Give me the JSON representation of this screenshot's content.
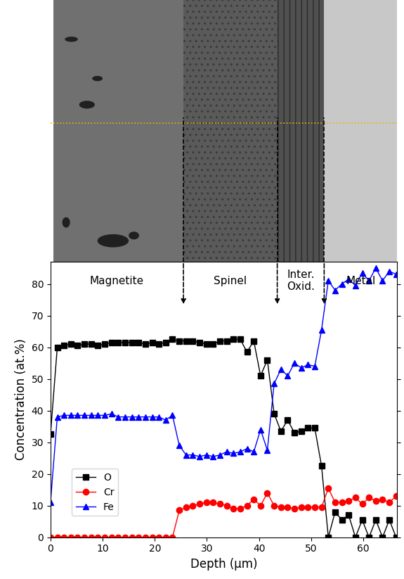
{
  "chart_data": {
    "type": "line",
    "x_label": "Depth (μm)",
    "y_label": "Concentration (at.%)",
    "x": [
      0,
      1.3,
      2.6,
      3.9,
      5.2,
      6.5,
      7.8,
      9.1,
      10.4,
      11.7,
      13.0,
      14.3,
      15.6,
      16.9,
      18.2,
      19.5,
      20.8,
      22.1,
      23.4,
      24.7,
      26.0,
      27.3,
      28.6,
      29.9,
      31.2,
      32.5,
      33.8,
      35.1,
      36.4,
      37.7,
      39.0,
      40.3,
      41.6,
      42.9,
      44.2,
      45.5,
      46.8,
      48.1,
      49.4,
      50.7,
      52.0,
      53.3,
      54.6,
      55.9,
      57.2,
      58.5,
      59.8,
      61.1,
      62.4,
      63.7,
      65.0,
      66.3
    ],
    "series": [
      {
        "name": "O",
        "color": "#000000",
        "marker": "square",
        "values": [
          32.5,
          60,
          60.5,
          61,
          60.5,
          61,
          61,
          60.5,
          61,
          61.5,
          61.5,
          61.5,
          61.5,
          61.5,
          61,
          61.5,
          61,
          61.5,
          62.5,
          62,
          62,
          62,
          61.5,
          61,
          61,
          62,
          62,
          62.5,
          62.5,
          58.5,
          62,
          51,
          56,
          39,
          33.5,
          37,
          33,
          33.5,
          34.5,
          34.5,
          22.5,
          0,
          8,
          5.5,
          7,
          0,
          5.5,
          0,
          5.5,
          0,
          5.5,
          0
        ]
      },
      {
        "name": "Cr",
        "color": "#ff0000",
        "marker": "circle",
        "values": [
          0,
          0,
          0,
          0,
          0,
          0,
          0,
          0,
          0,
          0,
          0,
          0,
          0,
          0,
          0,
          0,
          0,
          0,
          0,
          8.5,
          9.5,
          10,
          10.5,
          11,
          11,
          10.5,
          10,
          9,
          9,
          10,
          12,
          10,
          14,
          10,
          9.5,
          9.5,
          9,
          9.5,
          9.5,
          9.5,
          9.5,
          15.5,
          11,
          11,
          11.5,
          12.5,
          10.5,
          12.5,
          11.5,
          12,
          11,
          13
        ]
      },
      {
        "name": "Fe",
        "color": "#0000ff",
        "marker": "triangle",
        "values": [
          11,
          38,
          38.5,
          38.5,
          38.5,
          38.5,
          38.5,
          38.5,
          38.5,
          39,
          38,
          38,
          38,
          38,
          38,
          38,
          38,
          37,
          38.5,
          29,
          26,
          26,
          25.5,
          26,
          25.5,
          26,
          27,
          26.5,
          27,
          28,
          27,
          34,
          27.5,
          48.5,
          53,
          51,
          55,
          53.5,
          54.5,
          54,
          65.5,
          81,
          78,
          80,
          81.5,
          79.5,
          83.5,
          81,
          85,
          81,
          84,
          83
        ]
      }
    ],
    "xlim": [
      0,
      66.5
    ],
    "xticks": [
      0,
      10,
      20,
      30,
      40,
      50,
      60
    ],
    "ylim": [
      0,
      87
    ],
    "yticks": [
      0,
      10,
      20,
      30,
      40,
      50,
      60,
      70,
      80
    ],
    "legend": "lower left",
    "regions": [
      "Magnetite",
      "Spinel",
      "Inter.\nOxid.",
      "Metal"
    ],
    "boundaries": [
      25.5,
      43.5,
      52.5
    ]
  }
}
